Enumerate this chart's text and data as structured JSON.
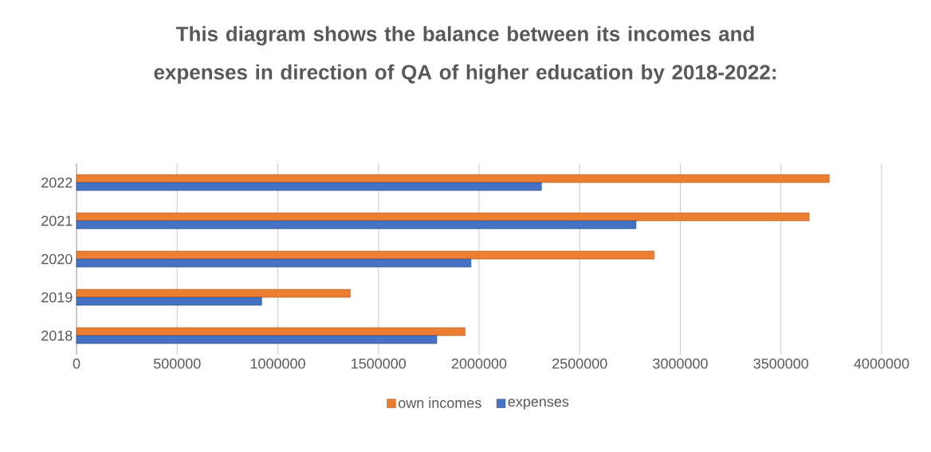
{
  "chart_data": {
    "type": "bar",
    "orientation": "horizontal",
    "title": "This diagram shows the balance between its incomes and expenses in direction of QA of higher education by 2018-2022:",
    "categories": [
      "2022",
      "2021",
      "2020",
      "2019",
      "2018"
    ],
    "series": [
      {
        "name": "own incomes",
        "color": "#ed7d31",
        "values": [
          3740000,
          3640000,
          2870000,
          1360000,
          1930000
        ]
      },
      {
        "name": "expenses",
        "color": "#4472c4",
        "values": [
          2310000,
          2780000,
          1960000,
          920000,
          1790000
        ]
      }
    ],
    "xlim": [
      0,
      4000000
    ],
    "xticks": [
      0,
      500000,
      1000000,
      1500000,
      2000000,
      2500000,
      3000000,
      3500000,
      4000000
    ],
    "grid": "x",
    "legend": "bottom"
  }
}
